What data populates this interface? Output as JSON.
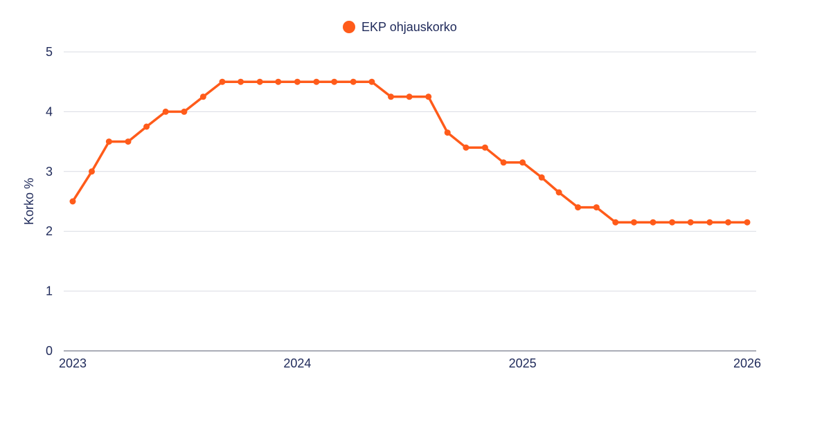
{
  "chart_data": {
    "type": "line",
    "ylabel": "Korko %",
    "ylim": [
      0,
      5
    ],
    "y_ticks": [
      "0",
      "1",
      "2",
      "3",
      "4",
      "5"
    ],
    "x_ticks": [
      "2023",
      "2024",
      "2025",
      "2026"
    ],
    "xlim": [
      "2023-01-01",
      "2026-01-01"
    ],
    "grid": true,
    "legend_position": "top-center",
    "colors": {
      "series": "#ff5b1a",
      "text": "#1f2a5a",
      "grid": "#d9dbe3"
    },
    "series": [
      {
        "name": "EKP ohjauskorko",
        "points": [
          {
            "x": "2023-01-01",
            "y": 2.5
          },
          {
            "x": "2023-02-01",
            "y": 3.0
          },
          {
            "x": "2023-03-01",
            "y": 3.5
          },
          {
            "x": "2023-04-01",
            "y": 3.5
          },
          {
            "x": "2023-05-01",
            "y": 3.75
          },
          {
            "x": "2023-06-01",
            "y": 4.0
          },
          {
            "x": "2023-07-01",
            "y": 4.0
          },
          {
            "x": "2023-08-01",
            "y": 4.25
          },
          {
            "x": "2023-09-01",
            "y": 4.5
          },
          {
            "x": "2023-10-01",
            "y": 4.5
          },
          {
            "x": "2023-11-01",
            "y": 4.5
          },
          {
            "x": "2023-12-01",
            "y": 4.5
          },
          {
            "x": "2024-01-01",
            "y": 4.5
          },
          {
            "x": "2024-02-01",
            "y": 4.5
          },
          {
            "x": "2024-03-01",
            "y": 4.5
          },
          {
            "x": "2024-04-01",
            "y": 4.5
          },
          {
            "x": "2024-05-01",
            "y": 4.5
          },
          {
            "x": "2024-06-01",
            "y": 4.25
          },
          {
            "x": "2024-07-01",
            "y": 4.25
          },
          {
            "x": "2024-08-01",
            "y": 4.25
          },
          {
            "x": "2024-09-01",
            "y": 3.65
          },
          {
            "x": "2024-10-01",
            "y": 3.4
          },
          {
            "x": "2024-11-01",
            "y": 3.4
          },
          {
            "x": "2024-12-01",
            "y": 3.15
          },
          {
            "x": "2025-01-01",
            "y": 3.15
          },
          {
            "x": "2025-02-01",
            "y": 2.9
          },
          {
            "x": "2025-03-01",
            "y": 2.65
          },
          {
            "x": "2025-04-01",
            "y": 2.4
          },
          {
            "x": "2025-05-01",
            "y": 2.4
          },
          {
            "x": "2025-06-01",
            "y": 2.15
          },
          {
            "x": "2025-07-01",
            "y": 2.15
          },
          {
            "x": "2025-08-01",
            "y": 2.15
          },
          {
            "x": "2025-09-01",
            "y": 2.15
          },
          {
            "x": "2025-10-01",
            "y": 2.15
          },
          {
            "x": "2025-11-01",
            "y": 2.15
          },
          {
            "x": "2025-12-01",
            "y": 2.15
          },
          {
            "x": "2026-01-01",
            "y": 2.15
          }
        ]
      }
    ]
  }
}
